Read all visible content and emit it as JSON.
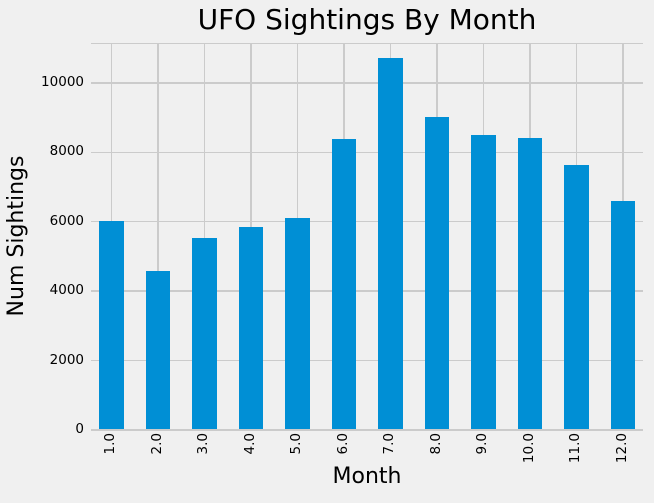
{
  "chart_data": {
    "type": "bar",
    "title": "UFO Sightings By Month",
    "xlabel": "Month",
    "ylabel": "Num Sightings",
    "categories": [
      "1.0",
      "2.0",
      "3.0",
      "4.0",
      "5.0",
      "6.0",
      "7.0",
      "8.0",
      "9.0",
      "10.0",
      "11.0",
      "12.0"
    ],
    "values": [
      5980,
      4560,
      5490,
      5820,
      6080,
      8360,
      10680,
      8990,
      8480,
      8370,
      7620,
      6560
    ],
    "yticks": [
      0,
      2000,
      4000,
      6000,
      8000,
      10000
    ],
    "ylim": [
      0,
      11120
    ],
    "grid": true,
    "legend_position": "none",
    "bar_color": "#008fd5",
    "background_color": "#f0f0f0",
    "grid_color": "#cbcbcb",
    "text_color": "#000000"
  }
}
